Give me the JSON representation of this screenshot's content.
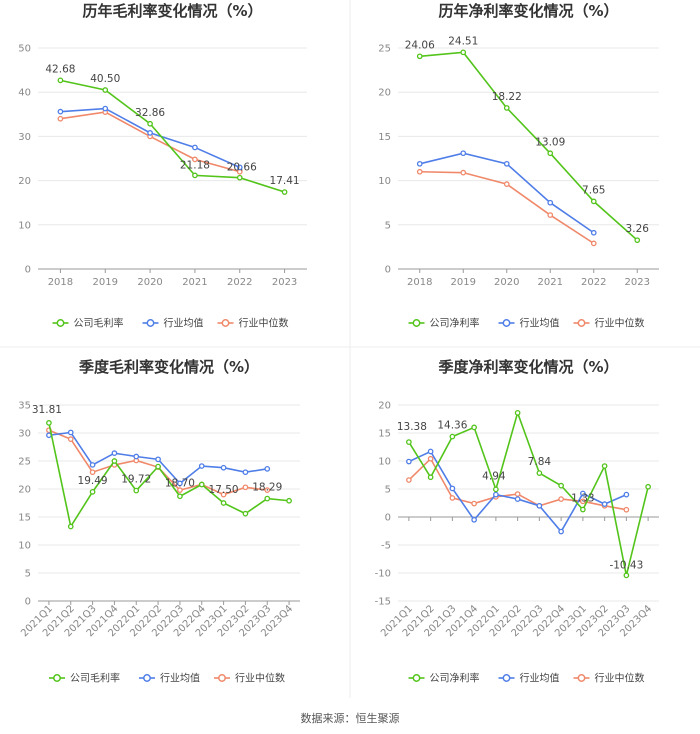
{
  "colors": {
    "company": "#52c41a",
    "industry_avg": "#4f7ee8",
    "industry_median": "#f0886a",
    "grid": "#e8e8e8",
    "axis": "#999999"
  },
  "source": "数据来源：恒生聚源",
  "chart_data": [
    {
      "type": "line",
      "title": "历年毛利率变化情况（%）",
      "categories": [
        "2018",
        "2019",
        "2020",
        "2021",
        "2022",
        "2023"
      ],
      "ylim": [
        0,
        50
      ],
      "yticks": [
        0,
        10,
        20,
        30,
        40,
        50
      ],
      "series": [
        {
          "name": "公司毛利率",
          "key": "company",
          "values": [
            42.68,
            40.5,
            32.86,
            21.18,
            20.66,
            17.41
          ],
          "labels": [
            "42.68",
            "40.50",
            "32.86",
            "21.18",
            "20.66",
            "17.41"
          ]
        },
        {
          "name": "行业均值",
          "key": "industry_avg",
          "values": [
            35.6,
            36.3,
            30.8,
            27.5,
            23.0,
            null
          ]
        },
        {
          "name": "行业中位数",
          "key": "industry_median",
          "values": [
            34.0,
            35.5,
            30.0,
            24.8,
            22.0,
            null
          ]
        }
      ]
    },
    {
      "type": "line",
      "title": "历年净利率变化情况（%）",
      "categories": [
        "2018",
        "2019",
        "2020",
        "2021",
        "2022",
        "2023"
      ],
      "ylim": [
        0,
        25
      ],
      "yticks": [
        0,
        5,
        10,
        15,
        20,
        25
      ],
      "series": [
        {
          "name": "公司净利率",
          "key": "company",
          "values": [
            24.06,
            24.51,
            18.22,
            13.09,
            7.65,
            3.26
          ],
          "labels": [
            "24.06",
            "24.51",
            "18.22",
            "13.09",
            "7.65",
            "3.26"
          ]
        },
        {
          "name": "行业均值",
          "key": "industry_avg",
          "values": [
            11.9,
            13.1,
            11.9,
            7.5,
            4.1,
            null
          ]
        },
        {
          "name": "行业中位数",
          "key": "industry_median",
          "values": [
            11.0,
            10.9,
            9.6,
            6.1,
            2.9,
            null
          ]
        }
      ]
    },
    {
      "type": "line",
      "title": "季度毛利率变化情况（%）",
      "categories": [
        "2021Q1",
        "2021Q2",
        "2021Q3",
        "2021Q4",
        "2022Q1",
        "2022Q2",
        "2022Q3",
        "2022Q4",
        "2023Q1",
        "2023Q2",
        "2023Q3",
        "2023Q4"
      ],
      "ylim": [
        0,
        35
      ],
      "yticks": [
        0,
        5,
        10,
        15,
        20,
        25,
        30,
        35
      ],
      "series": [
        {
          "name": "公司毛利率",
          "key": "company",
          "values": [
            31.81,
            13.3,
            19.49,
            25.0,
            19.72,
            24.0,
            18.7,
            20.8,
            17.5,
            15.6,
            18.29,
            17.9
          ],
          "labels": [
            "31.81",
            "",
            "19.49",
            "",
            "19.72",
            "",
            "18.70",
            "",
            "17.50",
            "",
            "18.29",
            ""
          ]
        },
        {
          "name": "行业均值",
          "key": "industry_avg",
          "values": [
            29.6,
            30.1,
            24.3,
            26.4,
            25.8,
            25.3,
            21.0,
            24.1,
            23.8,
            23.0,
            23.6,
            null
          ]
        },
        {
          "name": "行业中位数",
          "key": "industry_median",
          "values": [
            30.5,
            28.9,
            23.0,
            24.3,
            25.1,
            23.9,
            19.8,
            20.8,
            19.0,
            20.3,
            19.8,
            null
          ]
        }
      ]
    },
    {
      "type": "line",
      "title": "季度净利率变化情况（%）",
      "categories": [
        "2021Q1",
        "2021Q2",
        "2021Q3",
        "2021Q4",
        "2022Q1",
        "2022Q2",
        "2022Q3",
        "2022Q4",
        "2023Q1",
        "2023Q2",
        "2023Q3",
        "2023Q4"
      ],
      "ylim": [
        -15,
        20
      ],
      "yticks": [
        -15,
        -10,
        -5,
        0,
        5,
        10,
        15,
        20
      ],
      "series": [
        {
          "name": "公司净利率",
          "key": "company",
          "values": [
            13.38,
            7.1,
            14.36,
            16.0,
            4.94,
            18.6,
            7.84,
            5.6,
            1.33,
            9.1,
            -10.43,
            5.4
          ],
          "labels": [
            "13.38",
            "",
            "14.36",
            "",
            "4.94",
            "",
            "7.84",
            "",
            "1.33",
            "",
            "-10.43",
            ""
          ]
        },
        {
          "name": "行业均值",
          "key": "industry_avg",
          "values": [
            9.9,
            11.7,
            5.1,
            -0.5,
            4.0,
            3.2,
            2.0,
            -2.6,
            4.2,
            2.3,
            4.0,
            null
          ]
        },
        {
          "name": "行业中位数",
          "key": "industry_median",
          "values": [
            6.6,
            10.4,
            3.4,
            2.4,
            3.6,
            4.1,
            2.0,
            3.2,
            2.8,
            2.0,
            1.3,
            null
          ]
        }
      ]
    }
  ]
}
